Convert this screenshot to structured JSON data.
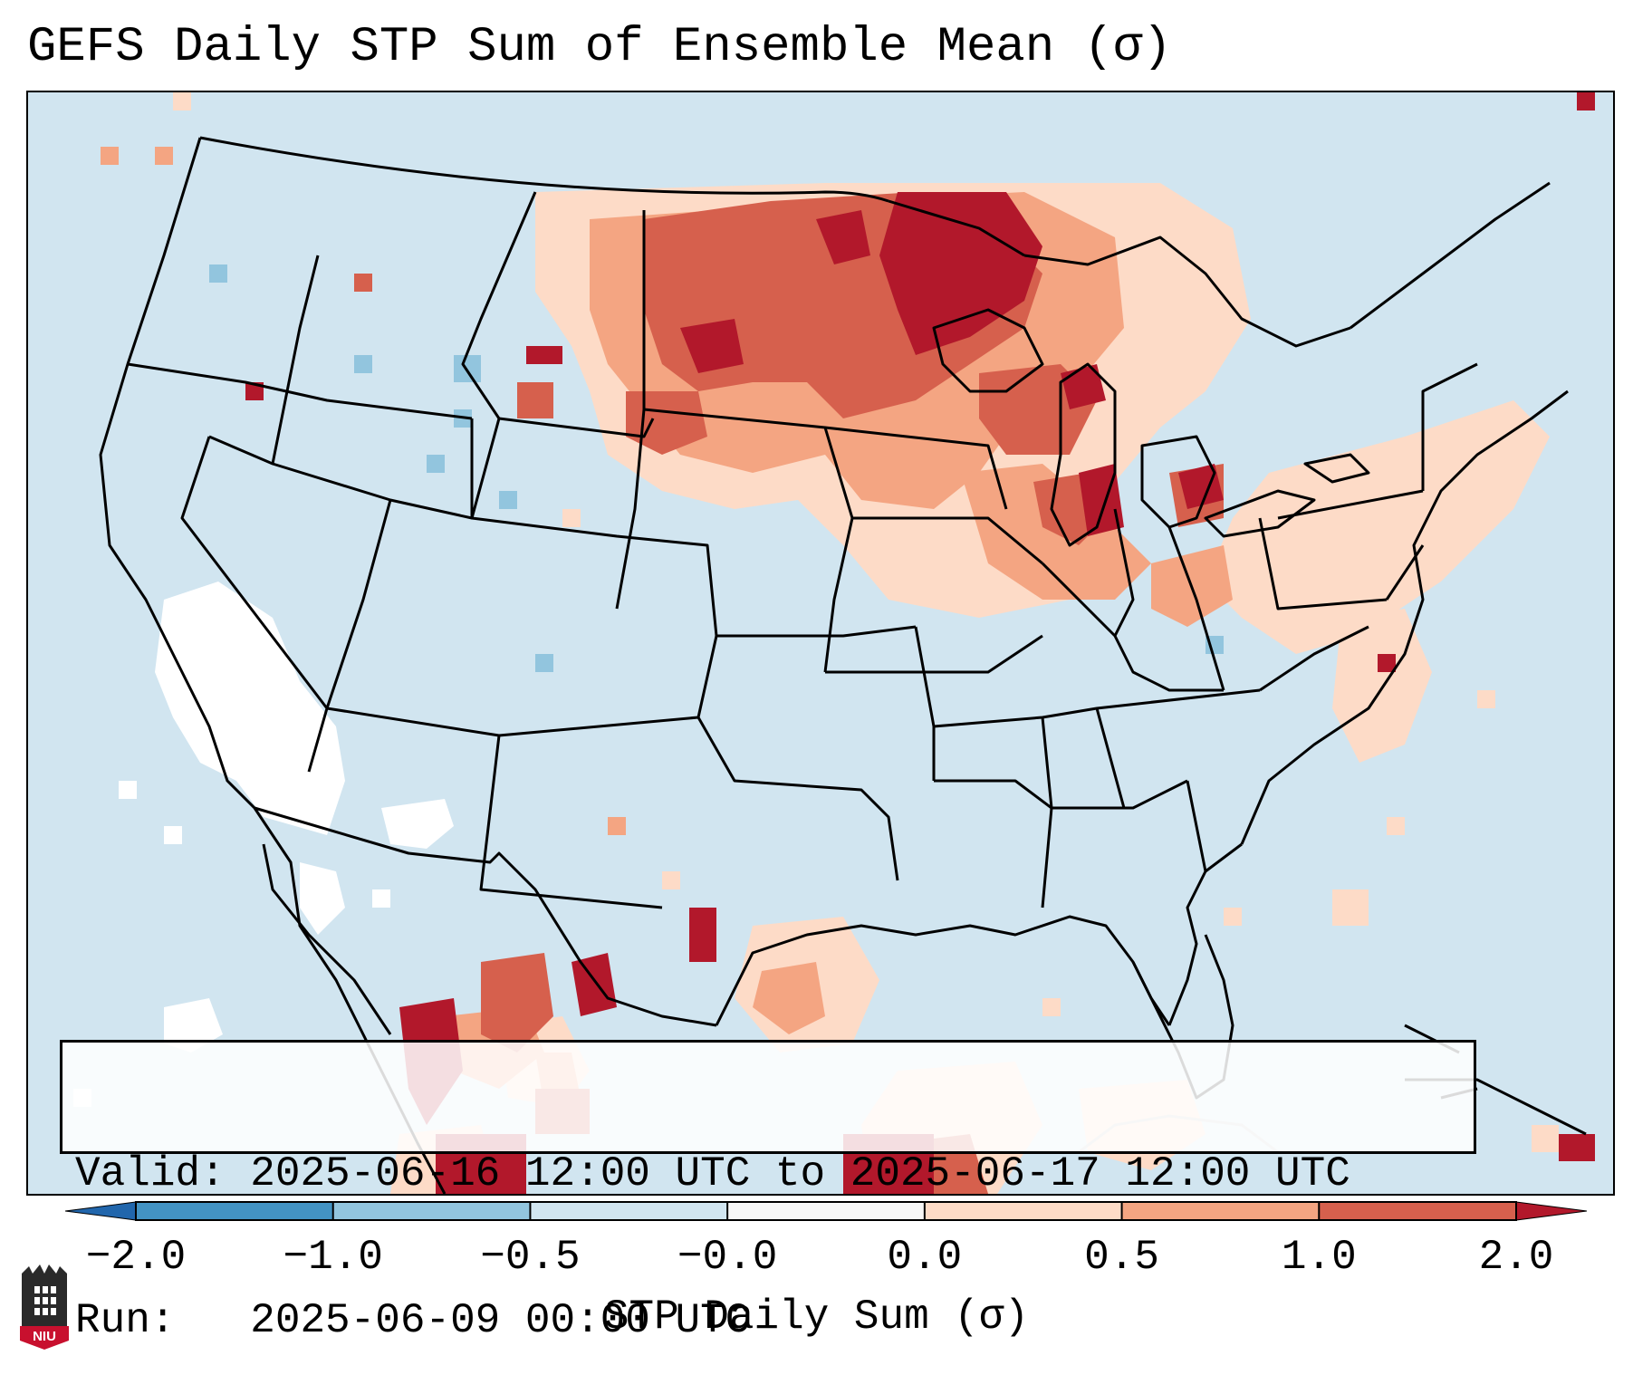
{
  "title": "GEFS Daily STP Sum of Ensemble Mean (σ)",
  "info": {
    "valid_line": "Valid: 2025-06-16 12:00 UTC to 2025-06-17 12:00 UTC",
    "run_line": "Run:   2025-06-09 00:00 UTC"
  },
  "colorbar": {
    "label": "STP Daily Sum (σ)",
    "ticks": [
      "−2.0",
      "−1.0",
      "−0.5",
      "−0.0",
      "0.0",
      "0.5",
      "1.0",
      "2.0"
    ],
    "colors": [
      "#2166ac",
      "#4393c3",
      "#92c5de",
      "#d1e5f0",
      "#f7f7f7",
      "#fddbc7",
      "#f4a582",
      "#d6604d",
      "#b2182b"
    ],
    "extend": "both"
  },
  "legend_colors": {
    "background": "#d1e5f0",
    "near_zero_neg": "#ffffff",
    "low_pos": "#fddbc7",
    "mid_pos": "#f4a582",
    "high_pos": "#d6604d",
    "very_high_pos": "#b2182b",
    "low_neg": "#92c5de"
  },
  "logo": {
    "text": "NIU",
    "icon": "niu-tower-logo-icon"
  }
}
